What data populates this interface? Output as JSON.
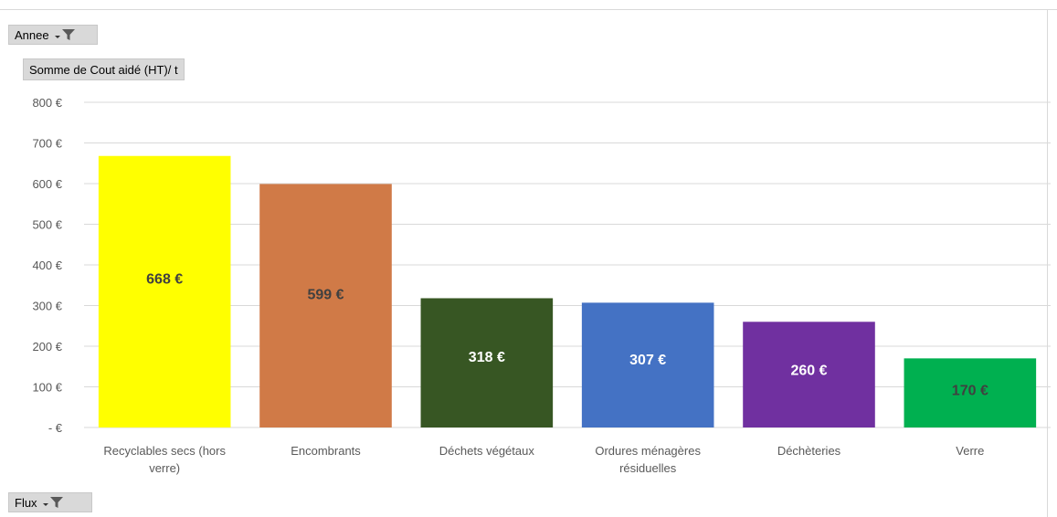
{
  "filters": {
    "year_field": "Annee",
    "flux_field": "Flux",
    "value_field": "Somme de Cout aidé (HT)/ t"
  },
  "colors": {
    "gridline": "#d9d9d9",
    "axis_text": "#595959",
    "label_dark": "#404040",
    "label_light": "#ffffff"
  },
  "chart_data": {
    "type": "bar",
    "categories": [
      [
        "Recyclables secs (hors",
        "verre)"
      ],
      [
        "Encombrants"
      ],
      [
        "Déchets végétaux"
      ],
      [
        "Ordures ménagères",
        "résiduelles"
      ],
      [
        "Déchèteries"
      ],
      [
        "Verre"
      ]
    ],
    "values": [
      668,
      599,
      318,
      307,
      260,
      170
    ],
    "data_labels": [
      "668 €",
      "599 €",
      "318 €",
      "307 €",
      "260 €",
      "170 €"
    ],
    "bar_colors": [
      "#ffff00",
      "#d07a47",
      "#375623",
      "#4472c4",
      "#7030a0",
      "#00b050"
    ],
    "label_colors": [
      "#404040",
      "#404040",
      "#ffffff",
      "#ffffff",
      "#ffffff",
      "#404040"
    ],
    "ylim": [
      0,
      800
    ],
    "yticks": [
      0,
      100,
      200,
      300,
      400,
      500,
      600,
      700,
      800
    ],
    "ytick_labels": [
      "-  €",
      "100 €",
      "200 €",
      "300 €",
      "400 €",
      "500 €",
      "600 €",
      "700 €",
      "800 €"
    ],
    "grid": true,
    "legend": "none"
  }
}
